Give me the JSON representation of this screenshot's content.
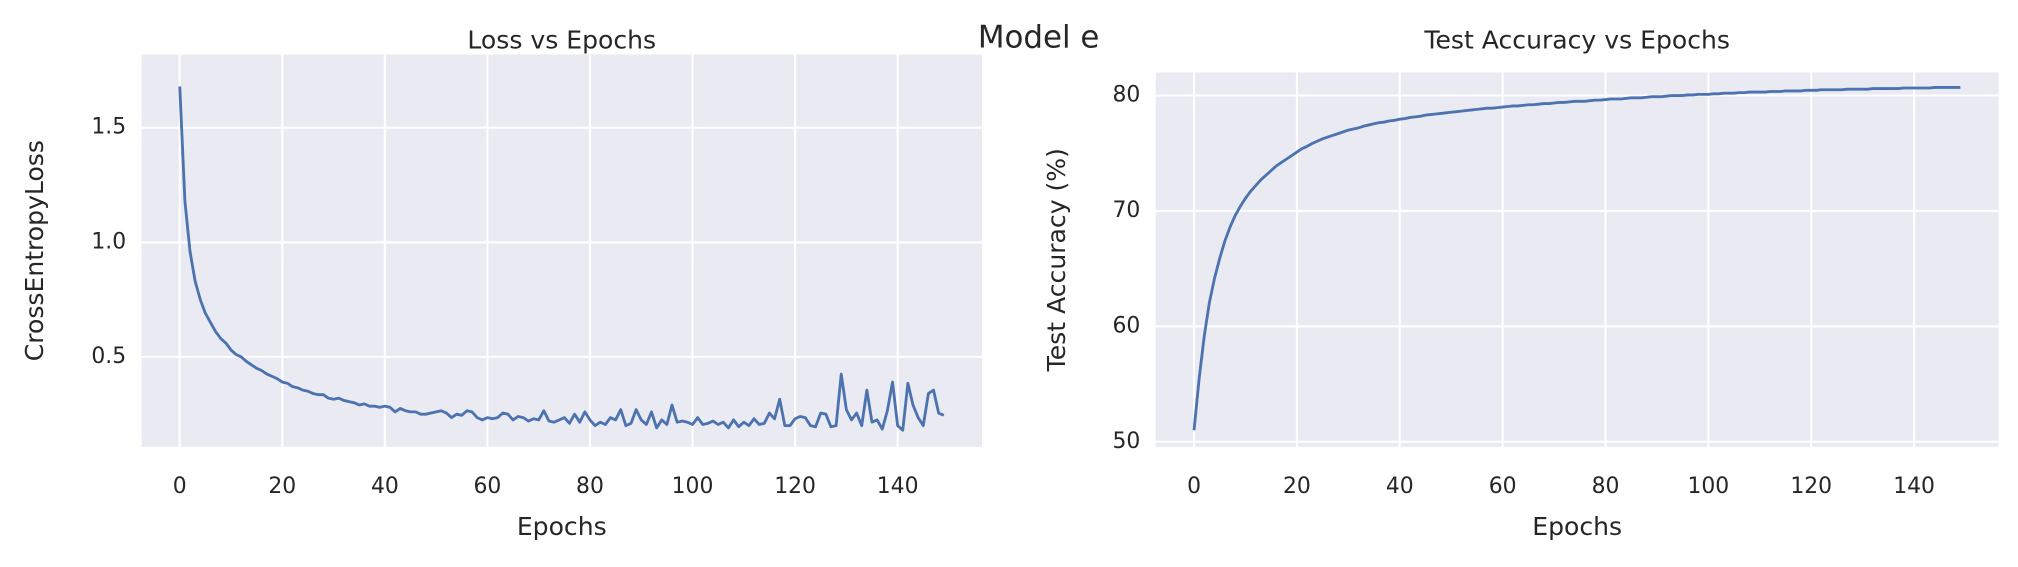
{
  "title": "Model e",
  "chart_data": [
    {
      "type": "line",
      "title": "Loss vs Epochs",
      "xlabel": "Epochs",
      "ylabel": "CrossEntropyLoss",
      "color": "#4c72b0",
      "grid": true,
      "xlim": [
        -7.45,
        156.45
      ],
      "ylim": [
        0.107,
        1.82
      ],
      "xticks": [
        0,
        20,
        40,
        60,
        80,
        100,
        120,
        140
      ],
      "yticks": [
        0.5,
        {
          "value": 1,
          "label": "1.0"
        },
        1.5
      ],
      "x": [
        0,
        1,
        2,
        3,
        4,
        5,
        6,
        7,
        8,
        9,
        10,
        11,
        12,
        13,
        14,
        15,
        16,
        17,
        18,
        19,
        20,
        21,
        22,
        23,
        24,
        25,
        26,
        27,
        28,
        29,
        30,
        31,
        32,
        33,
        34,
        35,
        36,
        37,
        38,
        39,
        40,
        41,
        42,
        43,
        44,
        45,
        46,
        47,
        48,
        49,
        50,
        51,
        52,
        53,
        54,
        55,
        56,
        57,
        58,
        59,
        60,
        61,
        62,
        63,
        64,
        65,
        66,
        67,
        68,
        69,
        70,
        71,
        72,
        73,
        74,
        75,
        76,
        77,
        78,
        79,
        80,
        81,
        82,
        83,
        84,
        85,
        86,
        87,
        88,
        89,
        90,
        91,
        92,
        93,
        94,
        95,
        96,
        97,
        98,
        99,
        100,
        101,
        102,
        103,
        104,
        105,
        106,
        107,
        108,
        109,
        110,
        111,
        112,
        113,
        114,
        115,
        116,
        117,
        118,
        119,
        120,
        121,
        122,
        123,
        124,
        125,
        126,
        127,
        128,
        129,
        130,
        131,
        132,
        133,
        134,
        135,
        136,
        137,
        138,
        139,
        140,
        141,
        142,
        143,
        144,
        145,
        146,
        147,
        148,
        149
      ],
      "values": [
        1.68,
        1.18,
        0.96,
        0.83,
        0.75,
        0.69,
        0.65,
        0.61,
        0.58,
        0.56,
        0.53,
        0.51,
        0.5,
        0.48,
        0.465,
        0.45,
        0.44,
        0.425,
        0.415,
        0.405,
        0.39,
        0.385,
        0.37,
        0.365,
        0.355,
        0.35,
        0.34,
        0.335,
        0.335,
        0.32,
        0.315,
        0.32,
        0.31,
        0.305,
        0.3,
        0.29,
        0.295,
        0.285,
        0.285,
        0.28,
        0.285,
        0.28,
        0.26,
        0.275,
        0.265,
        0.26,
        0.26,
        0.25,
        0.25,
        0.255,
        0.26,
        0.265,
        0.255,
        0.235,
        0.25,
        0.245,
        0.265,
        0.26,
        0.235,
        0.225,
        0.235,
        0.23,
        0.235,
        0.255,
        0.25,
        0.225,
        0.24,
        0.235,
        0.22,
        0.23,
        0.225,
        0.265,
        0.22,
        0.215,
        0.225,
        0.235,
        0.21,
        0.25,
        0.215,
        0.26,
        0.225,
        0.2,
        0.215,
        0.205,
        0.235,
        0.225,
        0.27,
        0.2,
        0.21,
        0.27,
        0.225,
        0.205,
        0.26,
        0.19,
        0.225,
        0.205,
        0.29,
        0.215,
        0.22,
        0.215,
        0.205,
        0.235,
        0.205,
        0.21,
        0.22,
        0.205,
        0.215,
        0.19,
        0.225,
        0.195,
        0.215,
        0.2,
        0.23,
        0.205,
        0.21,
        0.255,
        0.23,
        0.315,
        0.2,
        0.2,
        0.23,
        0.24,
        0.235,
        0.2,
        0.195,
        0.255,
        0.25,
        0.195,
        0.2,
        0.425,
        0.27,
        0.225,
        0.255,
        0.2,
        0.355,
        0.215,
        0.225,
        0.185,
        0.265,
        0.39,
        0.2,
        0.18,
        0.385,
        0.29,
        0.235,
        0.2,
        0.34,
        0.355,
        0.255,
        0.245
      ]
    },
    {
      "type": "line",
      "title": "Test Accuracy vs Epochs",
      "xlabel": "Epochs",
      "ylabel": "Test Accuracy (%)",
      "color": "#4c72b0",
      "grid": true,
      "xlim": [
        -7.45,
        156.45
      ],
      "ylim": [
        49.55,
        82.0
      ],
      "xticks": [
        0,
        20,
        40,
        60,
        80,
        100,
        120,
        140
      ],
      "yticks": [
        50,
        60,
        70,
        80
      ],
      "x": [
        0,
        1,
        2,
        3,
        4,
        5,
        6,
        7,
        8,
        9,
        10,
        11,
        12,
        13,
        14,
        15,
        16,
        17,
        18,
        19,
        20,
        21,
        22,
        23,
        24,
        25,
        26,
        27,
        28,
        29,
        30,
        31,
        32,
        33,
        34,
        35,
        36,
        37,
        38,
        39,
        40,
        41,
        42,
        43,
        44,
        45,
        46,
        47,
        48,
        49,
        50,
        51,
        52,
        53,
        54,
        55,
        56,
        57,
        58,
        59,
        60,
        61,
        62,
        63,
        64,
        65,
        66,
        67,
        68,
        69,
        70,
        71,
        72,
        73,
        74,
        75,
        76,
        77,
        78,
        79,
        80,
        81,
        82,
        83,
        84,
        85,
        86,
        87,
        88,
        89,
        90,
        91,
        92,
        93,
        94,
        95,
        96,
        97,
        98,
        99,
        100,
        101,
        102,
        103,
        104,
        105,
        106,
        107,
        108,
        109,
        110,
        111,
        112,
        113,
        114,
        115,
        116,
        117,
        118,
        119,
        120,
        121,
        122,
        123,
        124,
        125,
        126,
        127,
        128,
        129,
        130,
        131,
        132,
        133,
        134,
        135,
        136,
        137,
        138,
        139,
        140,
        141,
        142,
        143,
        144,
        145,
        146,
        147,
        148,
        149
      ],
      "values": [
        51.0,
        55.5,
        59.2,
        62.1,
        64.2,
        65.9,
        67.4,
        68.6,
        69.6,
        70.4,
        71.1,
        71.7,
        72.2,
        72.7,
        73.1,
        73.5,
        73.9,
        74.2,
        74.5,
        74.8,
        75.1,
        75.4,
        75.6,
        75.85,
        76.05,
        76.25,
        76.4,
        76.55,
        76.7,
        76.85,
        77.0,
        77.1,
        77.2,
        77.35,
        77.45,
        77.55,
        77.65,
        77.7,
        77.8,
        77.85,
        77.95,
        78.0,
        78.1,
        78.15,
        78.2,
        78.3,
        78.35,
        78.4,
        78.45,
        78.5,
        78.55,
        78.6,
        78.65,
        78.7,
        78.75,
        78.8,
        78.85,
        78.9,
        78.9,
        78.95,
        79.0,
        79.05,
        79.1,
        79.1,
        79.15,
        79.2,
        79.2,
        79.25,
        79.3,
        79.3,
        79.35,
        79.4,
        79.4,
        79.45,
        79.5,
        79.5,
        79.5,
        79.55,
        79.6,
        79.6,
        79.65,
        79.7,
        79.7,
        79.7,
        79.75,
        79.8,
        79.8,
        79.8,
        79.85,
        79.9,
        79.9,
        79.9,
        79.95,
        80.0,
        80.0,
        80.0,
        80.05,
        80.05,
        80.1,
        80.1,
        80.1,
        80.15,
        80.15,
        80.2,
        80.2,
        80.2,
        80.25,
        80.25,
        80.3,
        80.3,
        80.3,
        80.3,
        80.35,
        80.35,
        80.35,
        80.4,
        80.4,
        80.4,
        80.4,
        80.45,
        80.45,
        80.45,
        80.5,
        80.5,
        80.5,
        80.5,
        80.5,
        80.55,
        80.55,
        80.55,
        80.55,
        80.55,
        80.6,
        80.6,
        80.6,
        80.6,
        80.6,
        80.6,
        80.65,
        80.65,
        80.65,
        80.65,
        80.65,
        80.65,
        80.7,
        80.7,
        80.7,
        80.7,
        80.7,
        80.7
      ]
    }
  ]
}
